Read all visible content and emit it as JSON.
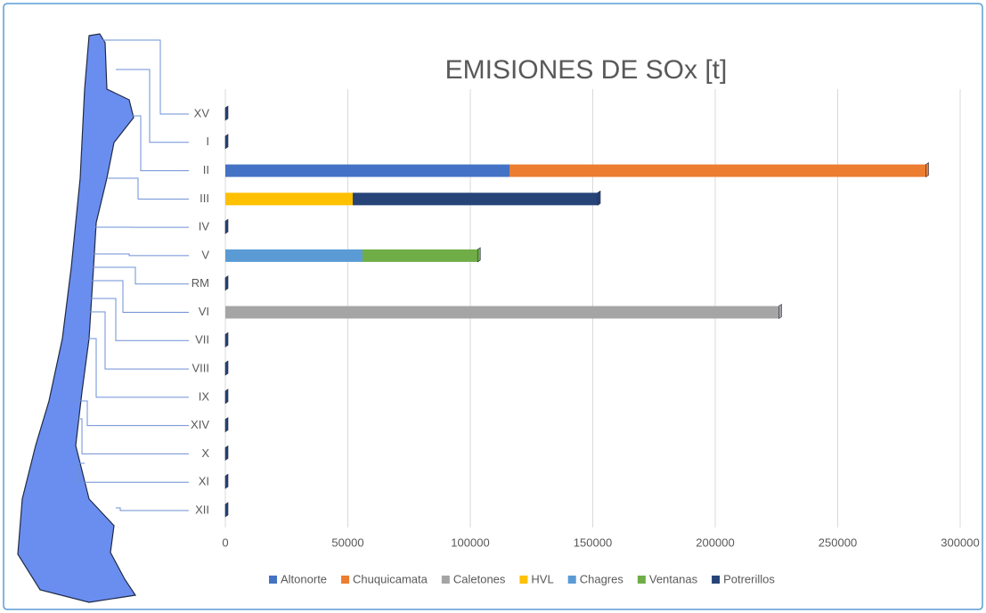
{
  "chart_data": {
    "type": "stacked_bar_horizontal",
    "title": "EMISIONES DE SOx [t]",
    "categories": [
      "XV",
      "I",
      "II",
      "III",
      "IV",
      "V",
      "RM",
      "VI",
      "VII",
      "VIII",
      "IX",
      "XIV",
      "X",
      "XI",
      "XII"
    ],
    "series": [
      {
        "name": "Altonorte",
        "color": "#4472c4",
        "values": [
          0,
          0,
          116000,
          0,
          0,
          0,
          0,
          0,
          0,
          0,
          0,
          0,
          0,
          0,
          0
        ]
      },
      {
        "name": "Chuquicamata",
        "color": "#ed7d31",
        "values": [
          0,
          0,
          170000,
          0,
          0,
          0,
          0,
          0,
          0,
          0,
          0,
          0,
          0,
          0,
          0
        ]
      },
      {
        "name": "Caletones",
        "color": "#a5a5a5",
        "values": [
          0,
          0,
          0,
          0,
          0,
          0,
          0,
          226000,
          0,
          0,
          0,
          0,
          0,
          0,
          0
        ]
      },
      {
        "name": "HVL",
        "color": "#ffc000",
        "values": [
          0,
          0,
          0,
          52000,
          0,
          0,
          0,
          0,
          0,
          0,
          0,
          0,
          0,
          0,
          0
        ]
      },
      {
        "name": "Chagres",
        "color": "#5b9bd5",
        "values": [
          0,
          0,
          0,
          0,
          0,
          56000,
          0,
          0,
          0,
          0,
          0,
          0,
          0,
          0,
          0
        ]
      },
      {
        "name": "Ventanas",
        "color": "#70ad47",
        "values": [
          0,
          0,
          0,
          0,
          0,
          47000,
          0,
          0,
          0,
          0,
          0,
          0,
          0,
          0,
          0
        ]
      },
      {
        "name": "Potrerillos",
        "color": "#264478",
        "values": [
          0,
          0,
          0,
          100000,
          0,
          0,
          0,
          0,
          0,
          0,
          0,
          0,
          0,
          0,
          0
        ]
      }
    ],
    "xlim": [
      0,
      300000
    ],
    "xticks": [
      0,
      50000,
      100000,
      150000,
      200000,
      250000,
      300000
    ],
    "grid": true,
    "legend": "bottom"
  }
}
